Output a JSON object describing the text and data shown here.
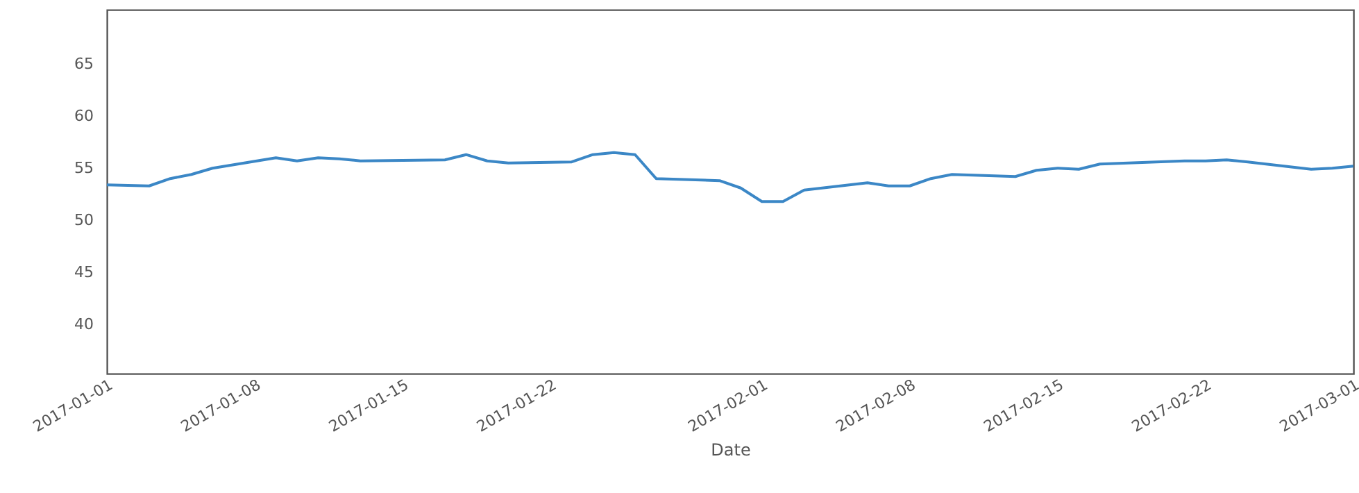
{
  "chart_data": {
    "type": "line",
    "xlabel": "Date",
    "x": [
      "2017-01-01",
      "2017-01-03",
      "2017-01-04",
      "2017-01-05",
      "2017-01-06",
      "2017-01-09",
      "2017-01-10",
      "2017-01-11",
      "2017-01-12",
      "2017-01-13",
      "2017-01-17",
      "2017-01-18",
      "2017-01-19",
      "2017-01-20",
      "2017-01-23",
      "2017-01-24",
      "2017-01-25",
      "2017-01-26",
      "2017-01-27",
      "2017-01-30",
      "2017-01-31",
      "2017-02-01",
      "2017-02-02",
      "2017-02-03",
      "2017-02-06",
      "2017-02-07",
      "2017-02-08",
      "2017-02-09",
      "2017-02-10",
      "2017-02-13",
      "2017-02-14",
      "2017-02-15",
      "2017-02-16",
      "2017-02-17",
      "2017-02-21",
      "2017-02-22",
      "2017-02-23",
      "2017-02-24",
      "2017-02-27",
      "2017-02-28",
      "2017-03-01"
    ],
    "series": [
      {
        "color": "#3b87c6",
        "values": [
          53.4,
          53.3,
          54.0,
          54.4,
          55.0,
          56.0,
          55.7,
          56.0,
          55.9,
          55.7,
          55.8,
          56.3,
          55.7,
          55.5,
          55.6,
          56.3,
          56.5,
          56.3,
          54.0,
          53.8,
          53.1,
          51.8,
          51.8,
          52.9,
          53.6,
          53.3,
          53.3,
          54.0,
          54.4,
          54.2,
          54.8,
          55.0,
          54.9,
          55.4,
          55.7,
          55.7,
          55.8,
          55.6,
          54.9,
          55.0,
          55.2
        ]
      }
    ],
    "xlim": [
      "2017-01-01",
      "2017-03-01"
    ],
    "xticks": [
      "2017-01-01",
      "2017-01-08",
      "2017-01-15",
      "2017-01-22",
      "2017-02-01",
      "2017-02-08",
      "2017-02-15",
      "2017-02-22",
      "2017-03-01"
    ],
    "ylim": [
      35.3,
      70.2
    ],
    "yticks": [
      40,
      45,
      50,
      55,
      60,
      65
    ],
    "grid": false,
    "line_style": "solid",
    "marker": "none"
  }
}
